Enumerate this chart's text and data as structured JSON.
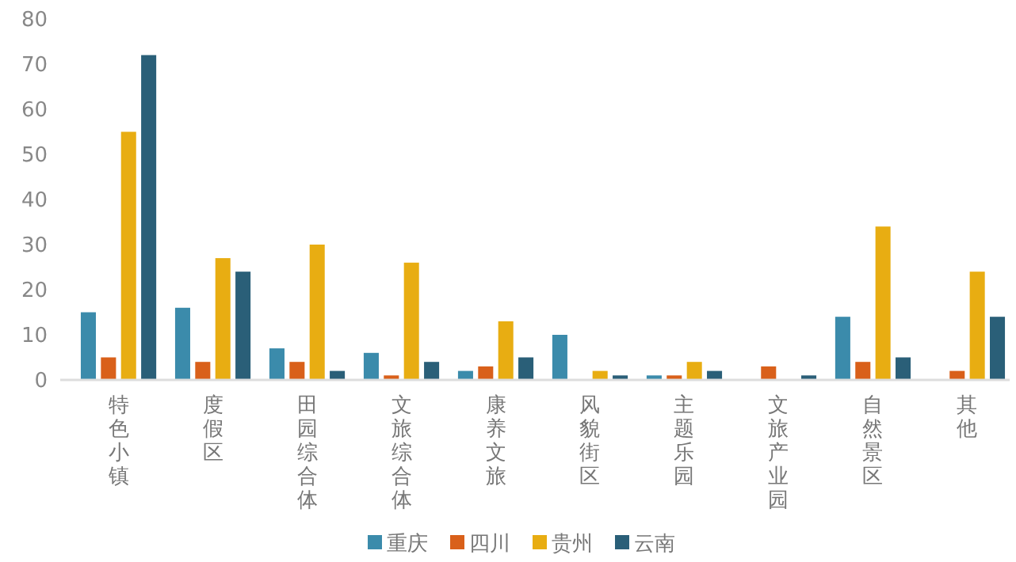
{
  "chart_data": {
    "type": "bar",
    "categories": [
      "特色小镇",
      "度假区",
      "田园综合体",
      "文旅综合体",
      "康养文旅",
      "风貌街区",
      "主题乐园",
      "文旅产业园",
      "自然景区",
      "其他"
    ],
    "series": [
      {
        "name": "重庆",
        "color": "#3b8bab",
        "values": [
          15,
          16,
          7,
          6,
          2,
          10,
          1,
          0,
          14,
          0
        ]
      },
      {
        "name": "四川",
        "color": "#d9601a",
        "values": [
          5,
          4,
          4,
          1,
          3,
          0,
          1,
          3,
          4,
          2
        ]
      },
      {
        "name": "贵州",
        "color": "#e8ad12",
        "values": [
          55,
          27,
          30,
          26,
          13,
          2,
          4,
          0,
          34,
          24
        ]
      },
      {
        "name": "云南",
        "color": "#2a5f78",
        "values": [
          72,
          24,
          2,
          4,
          5,
          1,
          2,
          1,
          5,
          14
        ]
      }
    ],
    "ylim": [
      0,
      80
    ],
    "yticks": [
      0,
      10,
      20,
      30,
      40,
      50,
      60,
      70,
      80
    ],
    "grid": false,
    "legend": "bottom"
  }
}
